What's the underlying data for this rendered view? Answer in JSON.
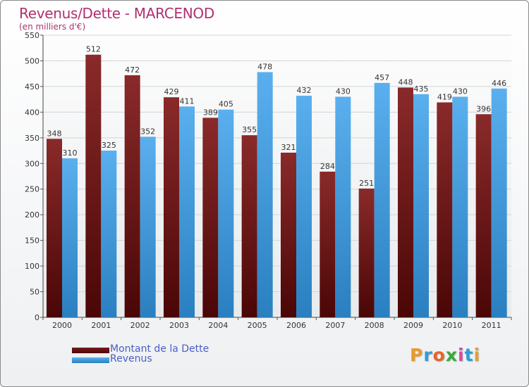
{
  "header": {
    "title": "Revenus/Dette - MARCENOD",
    "subtitle": "(en milliers d'€)"
  },
  "brand": {
    "letters": [
      "P",
      "r",
      "o",
      "x",
      "i",
      "t",
      "i"
    ],
    "colors": [
      "#e89a2a",
      "#2a9fd8",
      "#e8632a",
      "#3aa83a",
      "#d84aa0",
      "#2a9fd8",
      "#e8a02a"
    ]
  },
  "chart_data": {
    "type": "bar",
    "title": "Revenus/Dette - MARCENOD",
    "subtitle": "(en milliers d'€)",
    "categories": [
      "2000",
      "2001",
      "2002",
      "2003",
      "2004",
      "2005",
      "2006",
      "2007",
      "2008",
      "2009",
      "2010",
      "2011"
    ],
    "series": [
      {
        "name": "Montant de la Dette",
        "color": "#7a1a1a",
        "values": [
          348,
          512,
          472,
          429,
          389,
          355,
          321,
          284,
          251,
          448,
          419,
          396
        ]
      },
      {
        "name": "Revenus",
        "color": "#3d9fe0",
        "values": [
          310,
          325,
          352,
          411,
          405,
          478,
          432,
          430,
          457,
          435,
          430,
          446
        ]
      }
    ],
    "ylim": [
      0,
      550
    ],
    "yticks": [
      0,
      50,
      100,
      150,
      200,
      250,
      300,
      350,
      400,
      450,
      500,
      550
    ],
    "grid": true,
    "legend_position": "bottom-left"
  }
}
